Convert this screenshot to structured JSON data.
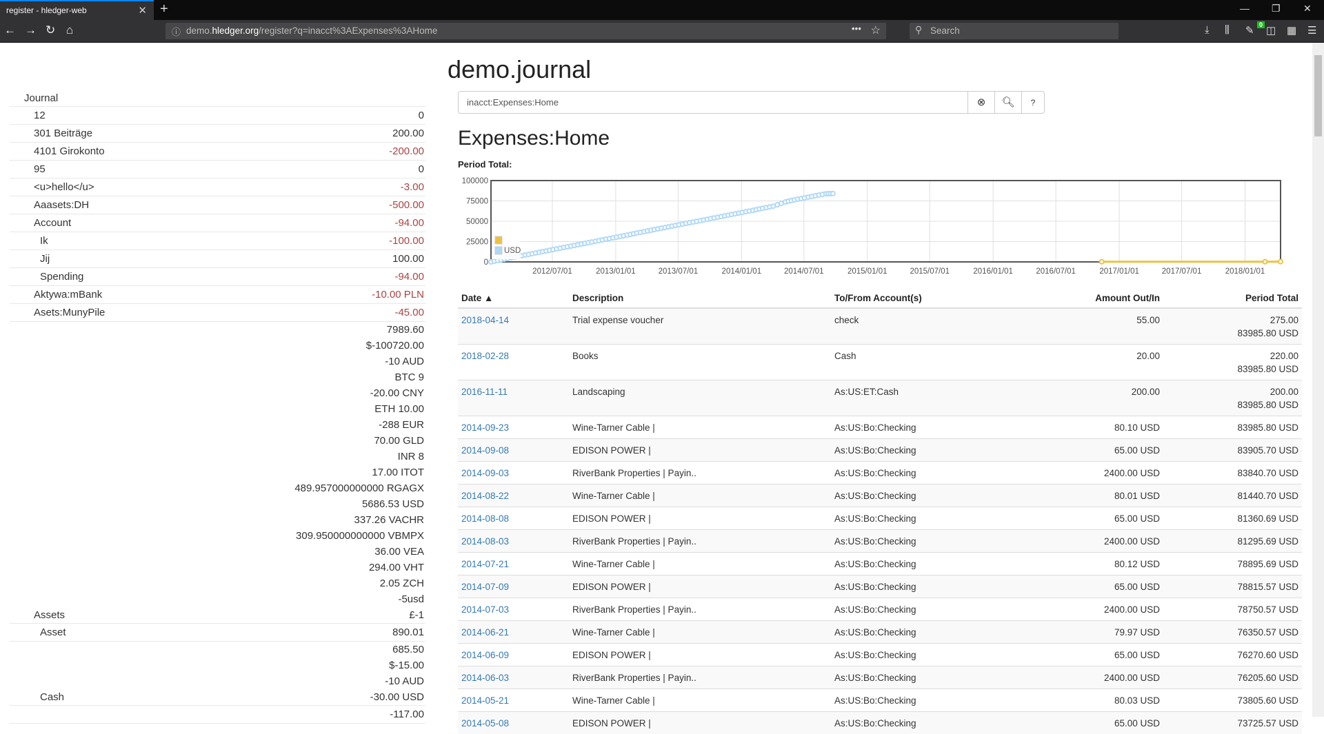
{
  "browser": {
    "tab_title": "register - hledger-web",
    "url_host_pre": "demo.",
    "url_host": "hledger.org",
    "url_path": "/register?q=inacct%3AExpenses%3AHome",
    "search_placeholder": "Search",
    "badge": "0"
  },
  "page": {
    "title": "demo.journal",
    "search_value": "inacct:Expenses:Home",
    "register_title": "Expenses:Home",
    "period_total_label": "Period Total:"
  },
  "sidebar": {
    "heading": "Journal",
    "rows": [
      {
        "name": "12",
        "level": 1,
        "amounts": [
          "0"
        ],
        "neg": false
      },
      {
        "name": "301 Beiträge",
        "level": 1,
        "amounts": [
          "200.00"
        ],
        "neg": false
      },
      {
        "name": "4101 Girokonto",
        "level": 1,
        "amounts": [
          "-200.00"
        ],
        "neg": true
      },
      {
        "name": "95",
        "level": 1,
        "amounts": [
          "0"
        ],
        "neg": false
      },
      {
        "name": "<u>hello</u>",
        "level": 1,
        "amounts": [
          "-3.00"
        ],
        "neg": true
      },
      {
        "name": "Aaasets:DH",
        "level": 1,
        "amounts": [
          "-500.00"
        ],
        "neg": true
      },
      {
        "name": "Account",
        "level": 1,
        "amounts": [
          "-94.00"
        ],
        "neg": true
      },
      {
        "name": "Ik",
        "level": 2,
        "amounts": [
          "-100.00"
        ],
        "neg": true
      },
      {
        "name": "Jij",
        "level": 2,
        "amounts": [
          "100.00"
        ],
        "neg": false
      },
      {
        "name": "Spending",
        "level": 2,
        "amounts": [
          "-94.00"
        ],
        "neg": true
      },
      {
        "name": "Aktywa:mBank",
        "level": 1,
        "amounts": [
          "-10.00 PLN"
        ],
        "neg": true
      },
      {
        "name": "Asets:MunyPile",
        "level": 1,
        "amounts": [
          "-45.00"
        ],
        "neg": true
      },
      {
        "name": "Assets",
        "level": 1,
        "amounts": [
          "7989.60",
          "$-100720.00",
          "-10 AUD",
          "BTC 9",
          "-20.00 CNY",
          "ETH 10.00",
          "-288 EUR",
          "70.00 GLD",
          "INR 8",
          "17.00 ITOT",
          "489.957000000000 RGAGX",
          "5686.53 USD",
          "337.26 VACHR",
          "309.950000000000 VBMPX",
          "36.00 VEA",
          "294.00 VHT",
          "2.05 ZCH",
          "-5usd",
          "£-1"
        ],
        "neg": false
      },
      {
        "name": "Asset",
        "level": 2,
        "amounts": [
          "890.01"
        ],
        "neg": false
      },
      {
        "name": "Cash",
        "level": 2,
        "amounts": [
          "685.50",
          "$-15.00",
          "-10 AUD",
          "-30.00 USD"
        ],
        "neg": false
      },
      {
        "name": "",
        "level": 2,
        "amounts": [
          "-117.00"
        ],
        "neg": false
      }
    ]
  },
  "register": {
    "columns": {
      "date": "Date",
      "sort_icon": "▲",
      "description": "Description",
      "account": "To/From Account(s)",
      "amount": "Amount Out/In",
      "total": "Period Total"
    },
    "rows": [
      {
        "date": "2018-04-14",
        "description": "Trial expense voucher",
        "account": "check",
        "amount": "55.00",
        "total": [
          "275.00",
          "83985.80 USD"
        ]
      },
      {
        "date": "2018-02-28",
        "description": "Books",
        "account": "Cash",
        "amount": "20.00",
        "total": [
          "220.00",
          "83985.80 USD"
        ]
      },
      {
        "date": "2016-11-11",
        "description": "Landscaping",
        "account": "As:US:ET:Cash",
        "amount": "200.00",
        "total": [
          "200.00",
          "83985.80 USD"
        ]
      },
      {
        "date": "2014-09-23",
        "description": "Wine-Tarner Cable |",
        "account": "As:US:Bo:Checking",
        "amount": "80.10 USD",
        "total": [
          "83985.80 USD"
        ]
      },
      {
        "date": "2014-09-08",
        "description": "EDISON POWER |",
        "account": "As:US:Bo:Checking",
        "amount": "65.00 USD",
        "total": [
          "83905.70 USD"
        ]
      },
      {
        "date": "2014-09-03",
        "description": "RiverBank Properties | Payin..",
        "account": "As:US:Bo:Checking",
        "amount": "2400.00 USD",
        "total": [
          "83840.70 USD"
        ]
      },
      {
        "date": "2014-08-22",
        "description": "Wine-Tarner Cable |",
        "account": "As:US:Bo:Checking",
        "amount": "80.01 USD",
        "total": [
          "81440.70 USD"
        ]
      },
      {
        "date": "2014-08-08",
        "description": "EDISON POWER |",
        "account": "As:US:Bo:Checking",
        "amount": "65.00 USD",
        "total": [
          "81360.69 USD"
        ]
      },
      {
        "date": "2014-08-03",
        "description": "RiverBank Properties | Payin..",
        "account": "As:US:Bo:Checking",
        "amount": "2400.00 USD",
        "total": [
          "81295.69 USD"
        ]
      },
      {
        "date": "2014-07-21",
        "description": "Wine-Tarner Cable |",
        "account": "As:US:Bo:Checking",
        "amount": "80.12 USD",
        "total": [
          "78895.69 USD"
        ]
      },
      {
        "date": "2014-07-09",
        "description": "EDISON POWER |",
        "account": "As:US:Bo:Checking",
        "amount": "65.00 USD",
        "total": [
          "78815.57 USD"
        ]
      },
      {
        "date": "2014-07-03",
        "description": "RiverBank Properties | Payin..",
        "account": "As:US:Bo:Checking",
        "amount": "2400.00 USD",
        "total": [
          "78750.57 USD"
        ]
      },
      {
        "date": "2014-06-21",
        "description": "Wine-Tarner Cable |",
        "account": "As:US:Bo:Checking",
        "amount": "79.97 USD",
        "total": [
          "76350.57 USD"
        ]
      },
      {
        "date": "2014-06-09",
        "description": "EDISON POWER |",
        "account": "As:US:Bo:Checking",
        "amount": "65.00 USD",
        "total": [
          "76270.60 USD"
        ]
      },
      {
        "date": "2014-06-03",
        "description": "RiverBank Properties | Payin..",
        "account": "As:US:Bo:Checking",
        "amount": "2400.00 USD",
        "total": [
          "76205.60 USD"
        ]
      },
      {
        "date": "2014-05-21",
        "description": "Wine-Tarner Cable |",
        "account": "As:US:Bo:Checking",
        "amount": "80.03 USD",
        "total": [
          "73805.60 USD"
        ]
      },
      {
        "date": "2014-05-08",
        "description": "EDISON POWER |",
        "account": "As:US:Bo:Checking",
        "amount": "65.00 USD",
        "total": [
          "73725.57 USD"
        ]
      }
    ]
  },
  "chart_data": {
    "type": "line",
    "title": "Period Total:",
    "xlim": [
      "2012-01-05",
      "2018-04-14"
    ],
    "ylim": [
      0,
      100000
    ],
    "yticks": [
      0,
      25000,
      50000,
      75000,
      100000
    ],
    "xticks": [
      "2012/07/01",
      "2013/01/01",
      "2013/07/01",
      "2014/01/01",
      "2014/07/01",
      "2015/01/01",
      "2015/07/01",
      "2016/01/01",
      "2016/07/01",
      "2017/01/01",
      "2017/07/01",
      "2018/01/01"
    ],
    "grid": true,
    "legend": "bottom-left",
    "series": [
      {
        "name": "",
        "color": "#edc240",
        "points": [
          [
            "2016-11-11",
            200
          ],
          [
            "2018-02-28",
            220
          ],
          [
            "2018-04-14",
            275
          ]
        ]
      },
      {
        "name": "USD",
        "color": "#afd8f8",
        "points": [
          [
            "2012-01-05",
            0
          ],
          [
            "2012-02-03",
            2480
          ],
          [
            "2012-03-03",
            5000
          ],
          [
            "2012-04-03",
            7550
          ],
          [
            "2012-05-03",
            10080
          ],
          [
            "2012-06-03",
            12620
          ],
          [
            "2012-07-03",
            15150
          ],
          [
            "2012-08-03",
            17700
          ],
          [
            "2012-09-03",
            20230
          ],
          [
            "2012-10-03",
            22770
          ],
          [
            "2012-11-03",
            25300
          ],
          [
            "2012-12-03",
            27850
          ],
          [
            "2013-01-03",
            30380
          ],
          [
            "2013-02-03",
            32920
          ],
          [
            "2013-03-03",
            35450
          ],
          [
            "2013-04-03",
            38000
          ],
          [
            "2013-05-03",
            40530
          ],
          [
            "2013-06-03",
            43070
          ],
          [
            "2013-07-03",
            45600
          ],
          [
            "2013-08-03",
            48150
          ],
          [
            "2013-09-03",
            50680
          ],
          [
            "2013-10-03",
            53220
          ],
          [
            "2013-11-03",
            55750
          ],
          [
            "2013-12-03",
            58300
          ],
          [
            "2014-01-03",
            60830
          ],
          [
            "2014-02-03",
            63370
          ],
          [
            "2014-03-03",
            65900
          ],
          [
            "2014-04-03",
            68450
          ],
          [
            "2014-05-08",
            73725.57
          ],
          [
            "2014-06-03",
            76205.6
          ],
          [
            "2014-07-03",
            78750.57
          ],
          [
            "2014-08-03",
            81295.69
          ],
          [
            "2014-09-03",
            83840.7
          ],
          [
            "2014-09-23",
            83985.8
          ]
        ]
      }
    ]
  }
}
